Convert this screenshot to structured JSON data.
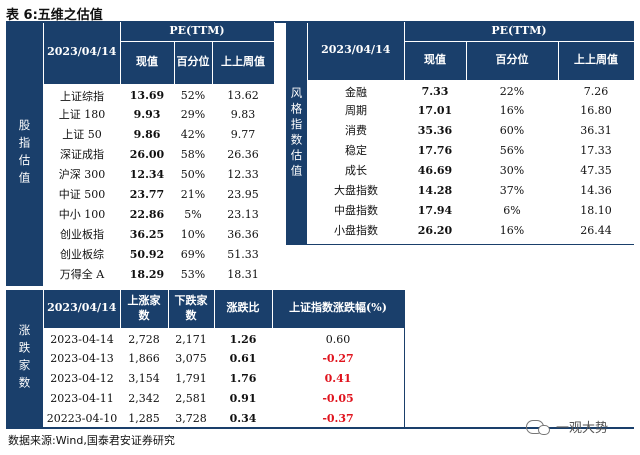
{
  "caption": "表 6:五维之估值",
  "source": "数据来源:Wind,国泰君安证券研究",
  "watermark": "一观大势",
  "left": {
    "side_label": "股指估值",
    "date": "2023/04/14",
    "group": "PE(TTM)",
    "columns": [
      "现值",
      "百分位",
      "上上周值"
    ],
    "rows": [
      {
        "name": "上证综指",
        "value": "13.69",
        "pct": "52%",
        "prev": "13.62"
      },
      {
        "name": "上证 180",
        "value": "9.93",
        "pct": "29%",
        "prev": "9.83"
      },
      {
        "name": "上证 50",
        "value": "9.86",
        "pct": "42%",
        "prev": "9.77"
      },
      {
        "name": "深证成指",
        "value": "26.00",
        "pct": "58%",
        "prev": "26.36"
      },
      {
        "name": "沪深 300",
        "value": "12.34",
        "pct": "50%",
        "prev": "12.33"
      },
      {
        "name": "中证 500",
        "value": "23.77",
        "pct": "21%",
        "prev": "23.95"
      },
      {
        "name": "中小 100",
        "value": "22.86",
        "pct": "5%",
        "prev": "23.13"
      },
      {
        "name": "创业板指",
        "value": "36.25",
        "pct": "10%",
        "prev": "36.36"
      },
      {
        "name": "创业板综",
        "value": "50.92",
        "pct": "69%",
        "prev": "51.33"
      },
      {
        "name": "万得全 A",
        "value": "18.29",
        "pct": "53%",
        "prev": "18.31"
      }
    ]
  },
  "right": {
    "side_label": "风格指数估值",
    "date": "2023/04/14",
    "group": "PE(TTM)",
    "columns": [
      "现值",
      "百分位",
      "上上周值"
    ],
    "rows": [
      {
        "name": "金融",
        "value": "7.33",
        "pct": "22%",
        "prev": "7.26"
      },
      {
        "name": "周期",
        "value": "17.01",
        "pct": "16%",
        "prev": "16.80"
      },
      {
        "name": "消费",
        "value": "35.36",
        "pct": "60%",
        "prev": "36.31"
      },
      {
        "name": "稳定",
        "value": "17.76",
        "pct": "56%",
        "prev": "17.33"
      },
      {
        "name": "成长",
        "value": "46.69",
        "pct": "30%",
        "prev": "47.35"
      },
      {
        "name": "大盘指数",
        "value": "14.28",
        "pct": "37%",
        "prev": "14.36"
      },
      {
        "name": "中盘指数",
        "value": "17.94",
        "pct": "6%",
        "prev": "18.10"
      },
      {
        "name": "小盘指数",
        "value": "26.20",
        "pct": "16%",
        "prev": "26.44"
      }
    ]
  },
  "bottom": {
    "side_label": "涨跌家数",
    "date": "2023/04/14",
    "columns": [
      "上涨家数",
      "下跌家数",
      "涨跌比",
      "上证指数涨跌幅(%)"
    ],
    "rows": [
      {
        "date": "2023-04-14",
        "up": "2,728",
        "down": "2,171",
        "ratio": "1.26",
        "chg": "0.60",
        "neg": false
      },
      {
        "date": "2023-04-13",
        "up": "1,866",
        "down": "3,075",
        "ratio": "0.61",
        "chg": "-0.27",
        "neg": true
      },
      {
        "date": "2023-04-12",
        "up": "3,154",
        "down": "1,791",
        "ratio": "1.76",
        "chg": "0.41",
        "neg": true
      },
      {
        "date": "2023-04-11",
        "up": "2,342",
        "down": "2,581",
        "ratio": "0.91",
        "chg": "-0.05",
        "neg": true
      },
      {
        "date": "20223-04-10",
        "up": "1,285",
        "down": "3,728",
        "ratio": "0.34",
        "chg": "-0.37",
        "neg": true
      }
    ]
  },
  "colors": {
    "header_bg": "#1a3f6b",
    "negative": "#e0141e"
  }
}
